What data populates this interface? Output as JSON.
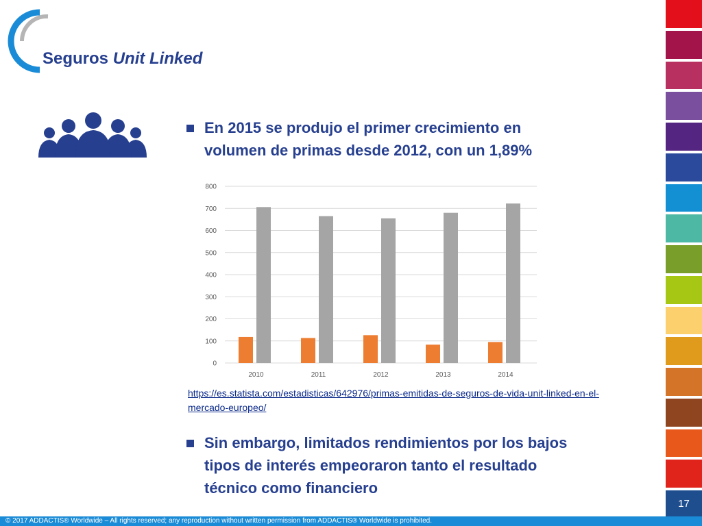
{
  "title": {
    "main": "Seguros ",
    "italic": "Unit Linked"
  },
  "bullets": [
    "En 2015 se produjo el primer crecimiento en\nvolumen de primas desde 2012, con un 1,89%",
    "Sin embargo, limitados rendimientos por los bajos\ntipos de interés empeoraron tanto el resultado\ntécnico como financiero"
  ],
  "bullet_lines": {
    "b1": [
      "En 2015 se produjo el primer crecimiento en",
      "volumen de primas desde 2012, con un 1,89%"
    ],
    "b2": [
      "Sin embargo, limitados rendimientos por los bajos",
      "tipos de interés empeoraron tanto el resultado",
      "técnico como financiero"
    ]
  },
  "source_link": "https://es.statista.com/estadisticas/642976/primas-emitidas-de-seguros-de-vida-unit-linked-en-el-mercado-europeo/",
  "page_number": "17",
  "footer": "© 2017 ADDACTIS® Worldwide – All rights reserved; any reproduction without written permission from ADDACTIS® Worldwide is prohibited.",
  "colors": {
    "title": "#263f8f",
    "series_orange": "#ed7d31",
    "series_gray": "#a5a5a5",
    "footer_bar": "#1a8bd6",
    "stripes": [
      "#e3101c",
      "#a3144a",
      "#b8305f",
      "#7a4f9e",
      "#552582",
      "#2b4a9b",
      "#1390d4",
      "#4db8a3",
      "#7a9e2a",
      "#a6c814",
      "#fcd06c",
      "#e09a1c",
      "#d47428",
      "#8e4520",
      "#e8581a",
      "#e0231b"
    ]
  },
  "icons": {
    "logo": "addactis-logo-icon",
    "people": "people-group-icon"
  },
  "chart_data": {
    "type": "bar",
    "categories": [
      "2010",
      "2011",
      "2012",
      "2013",
      "2014"
    ],
    "series": [
      {
        "values": [
          118,
          113,
          126,
          83,
          95
        ]
      },
      {
        "values": [
          706,
          665,
          655,
          680,
          722
        ]
      }
    ],
    "ylim": [
      0,
      800
    ],
    "yticks": [
      "0",
      "100",
      "200",
      "300",
      "400",
      "500",
      "600",
      "700",
      "800"
    ],
    "grid": true,
    "title": "",
    "xlabel": "",
    "ylabel": ""
  }
}
